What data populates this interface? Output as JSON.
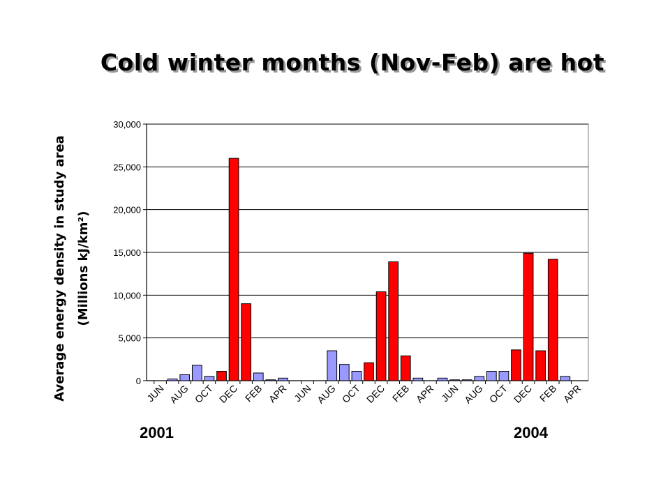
{
  "title": "Cold winter months (Nov-Feb) are hot",
  "years": {
    "start": "2001",
    "end": "2004"
  },
  "colors": {
    "winter": "#ff0000",
    "other": "#9999ff",
    "grid": "#000000"
  },
  "chart_data": {
    "type": "bar",
    "title": "Cold winter months (Nov-Feb) are hot",
    "ylabel_line1": "Average energy density in study area",
    "ylabel_line2": "(Millions kJ/km²)",
    "xlabel": "",
    "ylim": [
      0,
      30000
    ],
    "yticks": [
      "0",
      "5,000",
      "10,000",
      "15,000",
      "20,000",
      "25,000",
      "30,000"
    ],
    "xtick_labels": [
      "JUN",
      "AUG",
      "OCT",
      "DEC",
      "FEB",
      "APR",
      "JUN",
      "AUG",
      "OCT",
      "DEC",
      "FEB",
      "APR",
      "JUN",
      "AUG",
      "OCT",
      "DEC",
      "FEB",
      "APR"
    ],
    "grid": "horizontal",
    "legend": "none",
    "values": [
      0,
      200,
      700,
      1800,
      500,
      1100,
      26000,
      9000,
      900,
      100,
      300,
      0,
      0,
      0,
      3500,
      1900,
      1100,
      2100,
      10400,
      13900,
      2900,
      300,
      0,
      300,
      100,
      100,
      500,
      1100,
      1100,
      3600,
      14900,
      3500,
      14200,
      500,
      0
    ],
    "winter": [
      false,
      false,
      false,
      false,
      false,
      true,
      true,
      true,
      false,
      false,
      false,
      false,
      false,
      false,
      false,
      false,
      false,
      true,
      true,
      true,
      true,
      false,
      false,
      false,
      false,
      false,
      false,
      false,
      false,
      true,
      true,
      true,
      true,
      false,
      false
    ]
  }
}
